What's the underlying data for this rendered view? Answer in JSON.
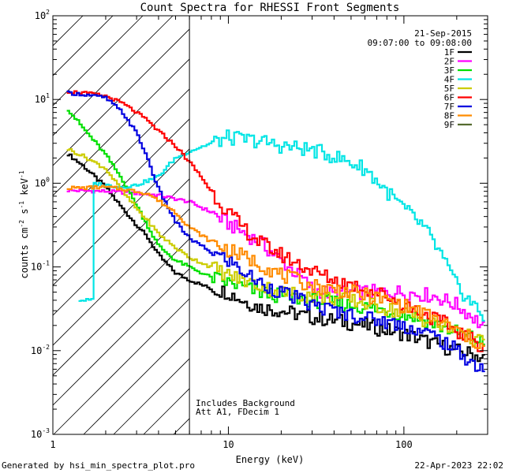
{
  "chart_data": {
    "type": "line",
    "title": "Count Spectra for RHESSI Front Segments",
    "xlabel": "Energy (keV)",
    "ylabel_parts": [
      "counts cm",
      "-2",
      " s",
      "-1",
      " keV",
      "-1"
    ],
    "xscale": "log",
    "yscale": "log",
    "xlim": [
      1,
      300
    ],
    "ylim": [
      0.001,
      100
    ],
    "x_tick_labels": [
      {
        "value": 1,
        "label": "1"
      },
      {
        "value": 10,
        "label": "10"
      },
      {
        "value": 100,
        "label": "100"
      }
    ],
    "y_tick_labels": [
      {
        "value": 0.001,
        "base": "10",
        "exp": "-3"
      },
      {
        "value": 0.01,
        "base": "10",
        "exp": "-2"
      },
      {
        "value": 0.1,
        "base": "10",
        "exp": "-1"
      },
      {
        "value": 1,
        "base": "10",
        "exp": "0"
      },
      {
        "value": 10,
        "base": "10",
        "exp": "1"
      },
      {
        "value": 100,
        "base": "10",
        "exp": "2"
      }
    ],
    "legend_date": "21-Sep-2015",
    "legend_time": "09:07:00 to 09:08:00",
    "hatched_region_xmax": 6,
    "vline_x": 6,
    "annotations": [
      "Includes Background",
      "Att A1, FDecim 1"
    ],
    "series": [
      {
        "name": "1F",
        "color": "#000000",
        "points": [
          [
            1.2,
            2.3
          ],
          [
            1.5,
            1.6
          ],
          [
            2,
            0.9
          ],
          [
            2.5,
            0.5
          ],
          [
            3,
            0.32
          ],
          [
            3.5,
            0.22
          ],
          [
            4,
            0.14
          ],
          [
            5,
            0.085
          ],
          [
            6,
            0.07
          ],
          [
            8,
            0.055
          ],
          [
            10,
            0.05
          ],
          [
            12,
            0.04
          ],
          [
            15,
            0.033
          ],
          [
            20,
            0.03
          ],
          [
            30,
            0.025
          ],
          [
            40,
            0.023
          ],
          [
            60,
            0.02
          ],
          [
            100,
            0.016
          ],
          [
            150,
            0.012
          ],
          [
            200,
            0.01
          ],
          [
            250,
            0.009
          ],
          [
            290,
            0.008
          ]
        ]
      },
      {
        "name": "2F",
        "color": "#ff00ff",
        "points": [
          [
            1.2,
            0.82
          ],
          [
            2,
            0.8
          ],
          [
            3,
            0.76
          ],
          [
            4,
            0.72
          ],
          [
            6,
            0.6
          ],
          [
            8,
            0.45
          ],
          [
            10,
            0.33
          ],
          [
            15,
            0.2
          ],
          [
            20,
            0.12
          ],
          [
            25,
            0.08
          ],
          [
            30,
            0.055
          ],
          [
            40,
            0.047
          ],
          [
            50,
            0.05
          ],
          [
            70,
            0.05
          ],
          [
            100,
            0.05
          ],
          [
            150,
            0.045
          ],
          [
            200,
            0.035
          ],
          [
            250,
            0.025
          ],
          [
            290,
            0.018
          ]
        ]
      },
      {
        "name": "3F",
        "color": "#00e000",
        "points": [
          [
            1.2,
            8
          ],
          [
            1.5,
            4.5
          ],
          [
            2,
            2.2
          ],
          [
            2.5,
            1.1
          ],
          [
            3,
            0.55
          ],
          [
            3.5,
            0.3
          ],
          [
            4,
            0.18
          ],
          [
            5,
            0.12
          ],
          [
            6,
            0.1
          ],
          [
            8,
            0.075
          ],
          [
            10,
            0.065
          ],
          [
            15,
            0.05
          ],
          [
            20,
            0.045
          ],
          [
            30,
            0.04
          ],
          [
            50,
            0.035
          ],
          [
            80,
            0.03
          ],
          [
            120,
            0.025
          ],
          [
            180,
            0.018
          ],
          [
            250,
            0.014
          ],
          [
            290,
            0.012
          ]
        ]
      },
      {
        "name": "4F",
        "color": "#00e5e5",
        "points": [
          [
            1.4,
            0.04
          ],
          [
            1.7,
            0.04
          ],
          [
            1.7,
            1.0
          ],
          [
            2,
            0.95
          ],
          [
            2.5,
            0.9
          ],
          [
            3,
            0.95
          ],
          [
            4,
            1.2
          ],
          [
            5,
            2
          ],
          [
            6,
            2.4
          ],
          [
            8,
            3
          ],
          [
            10,
            3.5
          ],
          [
            15,
            3.2
          ],
          [
            20,
            2.8
          ],
          [
            30,
            2.5
          ],
          [
            40,
            2.1
          ],
          [
            60,
            1.5
          ],
          [
            80,
            0.8
          ],
          [
            100,
            0.5
          ],
          [
            130,
            0.3
          ],
          [
            160,
            0.15
          ],
          [
            200,
            0.06
          ],
          [
            250,
            0.035
          ],
          [
            290,
            0.025
          ]
        ]
      },
      {
        "name": "5F",
        "color": "#cccc00",
        "points": [
          [
            1.2,
            2.6
          ],
          [
            1.5,
            2.1
          ],
          [
            2,
            1.5
          ],
          [
            2.5,
            0.8
          ],
          [
            3,
            0.5
          ],
          [
            3.5,
            0.35
          ],
          [
            4,
            0.25
          ],
          [
            5,
            0.17
          ],
          [
            6,
            0.13
          ],
          [
            8,
            0.1
          ],
          [
            10,
            0.08
          ],
          [
            15,
            0.06
          ],
          [
            20,
            0.05
          ],
          [
            30,
            0.045
          ],
          [
            50,
            0.04
          ],
          [
            80,
            0.032
          ],
          [
            120,
            0.025
          ],
          [
            180,
            0.018
          ],
          [
            250,
            0.014
          ],
          [
            290,
            0.012
          ]
        ]
      },
      {
        "name": "6F",
        "color": "#ff0000",
        "points": [
          [
            1.2,
            12.5
          ],
          [
            1.5,
            12
          ],
          [
            2,
            11
          ],
          [
            2.5,
            9
          ],
          [
            3,
            7
          ],
          [
            3.5,
            5.5
          ],
          [
            4,
            4.2
          ],
          [
            5,
            2.8
          ],
          [
            6,
            1.8
          ],
          [
            7,
            1.2
          ],
          [
            8,
            0.8
          ],
          [
            10,
            0.45
          ],
          [
            12,
            0.3
          ],
          [
            15,
            0.2
          ],
          [
            20,
            0.14
          ],
          [
            25,
            0.11
          ],
          [
            30,
            0.09
          ],
          [
            40,
            0.07
          ],
          [
            60,
            0.055
          ],
          [
            80,
            0.045
          ],
          [
            120,
            0.03
          ],
          [
            180,
            0.02
          ],
          [
            250,
            0.013
          ],
          [
            290,
            0.011
          ]
        ]
      },
      {
        "name": "7F",
        "color": "#0000e0",
        "points": [
          [
            1.2,
            12
          ],
          [
            1.5,
            11.5
          ],
          [
            2,
            10.5
          ],
          [
            2.5,
            7
          ],
          [
            3,
            4
          ],
          [
            3.5,
            1.9
          ],
          [
            4,
            0.85
          ],
          [
            5,
            0.35
          ],
          [
            6,
            0.22
          ],
          [
            8,
            0.15
          ],
          [
            10,
            0.12
          ],
          [
            12,
            0.09
          ],
          [
            15,
            0.065
          ],
          [
            20,
            0.05
          ],
          [
            30,
            0.035
          ],
          [
            40,
            0.03
          ],
          [
            60,
            0.025
          ],
          [
            100,
            0.02
          ],
          [
            150,
            0.015
          ],
          [
            200,
            0.01
          ],
          [
            250,
            0.007
          ],
          [
            290,
            0.006
          ]
        ]
      },
      {
        "name": "8F",
        "color": "#ff8c00",
        "points": [
          [
            1.2,
            0.88
          ],
          [
            1.5,
            0.88
          ],
          [
            2,
            0.9
          ],
          [
            2.5,
            0.85
          ],
          [
            3,
            0.8
          ],
          [
            3.5,
            0.75
          ],
          [
            4,
            0.62
          ],
          [
            5,
            0.45
          ],
          [
            6,
            0.3
          ],
          [
            8,
            0.2
          ],
          [
            10,
            0.16
          ],
          [
            15,
            0.11
          ],
          [
            20,
            0.08
          ],
          [
            30,
            0.06
          ],
          [
            50,
            0.05
          ],
          [
            80,
            0.04
          ],
          [
            120,
            0.03
          ],
          [
            180,
            0.02
          ],
          [
            250,
            0.013
          ],
          [
            290,
            0.011
          ]
        ]
      },
      {
        "name": "9F",
        "color": "#556b2f",
        "points": []
      }
    ]
  },
  "footer": {
    "left": "Generated by hsi_min_spectra_plot.pro",
    "right": "22-Apr-2023 22:02"
  }
}
